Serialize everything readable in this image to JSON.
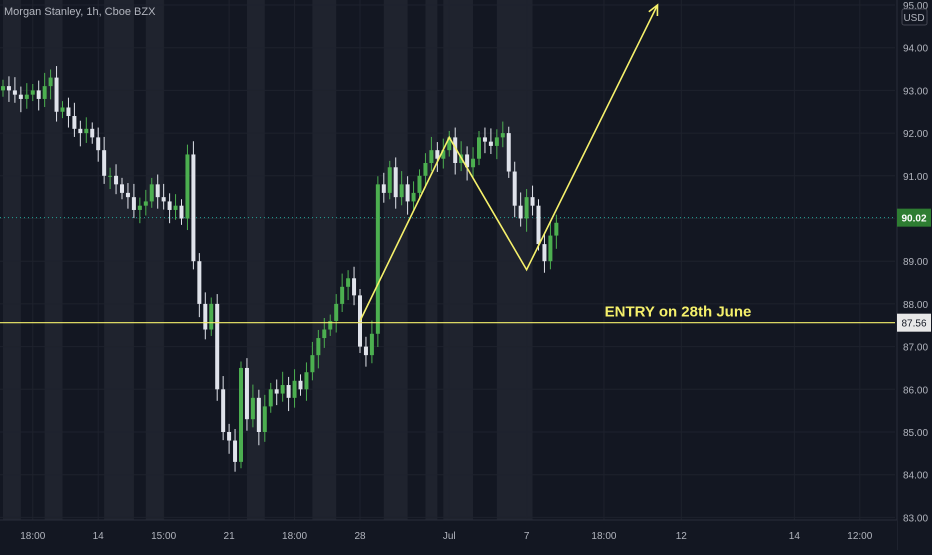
{
  "header": {
    "symbol_title": "Morgan Stanley, 1h, Cboe BZX"
  },
  "currency": "USD",
  "colors": {
    "background": "#131722",
    "up": "#26a69a",
    "up_bar": "#4caf50",
    "down": "#e0e3eb",
    "grid": "#1e222d",
    "axis_text": "#b2b5be",
    "drawing": "#f5f06b",
    "entry_line": "#f5f06b",
    "price_badge": "#2e7d32",
    "entry_badge": "#e8e8e8",
    "session_shade": "#2a2e39"
  },
  "chart_data": {
    "type": "candlestick",
    "title": "Morgan Stanley, 1h, Cboe BZX",
    "y_axis": {
      "min": 83.0,
      "max": 95.0,
      "tick_labels": [
        "95.00",
        "94.00",
        "93.00",
        "92.00",
        "91.00",
        "90.00",
        "89.00",
        "88.00",
        "87.00",
        "86.00",
        "85.00",
        "84.00",
        "83.00"
      ],
      "ticks": [
        95,
        94,
        93,
        92,
        91,
        90,
        89,
        88,
        87,
        86,
        85,
        84,
        83
      ]
    },
    "x_axis": {
      "tick_labels": [
        "18:00",
        "14",
        "15:00",
        "21",
        "18:00",
        "28",
        "Jul",
        "7",
        "18:00",
        "12",
        "14",
        "12:00"
      ],
      "tick_index": [
        5,
        16,
        27,
        38,
        49,
        60,
        75,
        88,
        101,
        114,
        133,
        144
      ]
    },
    "closes": [
      93.1,
      93.0,
      92.9,
      92.8,
      92.9,
      93.0,
      92.8,
      93.1,
      93.3,
      92.5,
      92.6,
      92.4,
      92.1,
      92.0,
      92.1,
      91.9,
      91.6,
      91.0,
      91.0,
      90.8,
      90.6,
      90.5,
      90.2,
      90.3,
      90.4,
      90.8,
      90.5,
      90.4,
      90.2,
      90.3,
      90.0,
      91.5,
      89.0,
      88.0,
      87.4,
      88.0,
      86.0,
      85.0,
      84.8,
      84.3,
      86.5,
      85.3,
      85.8,
      85.0,
      85.6,
      86.0,
      85.9,
      86.1,
      85.8,
      86.2,
      86.0,
      86.4,
      86.8,
      87.2,
      87.4,
      87.6,
      88.0,
      88.4,
      88.6,
      88.2,
      87.0,
      86.8,
      87.3,
      90.8,
      90.6,
      91.2,
      90.5,
      90.8,
      90.4,
      90.6,
      91.0,
      91.3,
      91.6,
      91.4,
      91.6,
      91.9,
      91.3,
      91.5,
      91.2,
      91.4,
      91.9,
      91.8,
      91.7,
      91.9,
      92.0,
      91.1,
      90.3,
      90.0,
      90.5,
      90.3,
      89.4,
      89.0,
      89.6,
      89.9
    ],
    "last_price": "90.02",
    "annotations": [
      {
        "type": "horizontal_line",
        "price": 87.56,
        "label": "87.56",
        "text": "ENTRY on 28th June"
      },
      {
        "type": "path",
        "points": [
          [
            60,
            87.6
          ],
          [
            75,
            91.9
          ],
          [
            88,
            88.8
          ],
          [
            110,
            95.0
          ]
        ],
        "arrow": true
      },
      {
        "type": "price_label",
        "price": 90.02,
        "label": "90.02"
      }
    ],
    "session_shades": [
      [
        0,
        3
      ],
      [
        7,
        10
      ],
      [
        17,
        22
      ],
      [
        24,
        27
      ],
      [
        41,
        44
      ],
      [
        52,
        56
      ],
      [
        64,
        68
      ],
      [
        71,
        73
      ],
      [
        74,
        79
      ],
      [
        83,
        89
      ]
    ]
  }
}
